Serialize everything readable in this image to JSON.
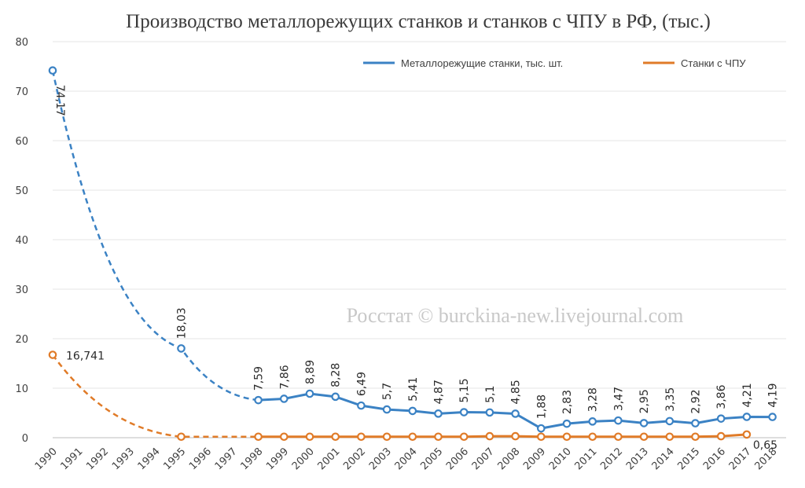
{
  "chart_data": {
    "type": "line",
    "title": "Производство металлорежущих станков и станков с ЧПУ в РФ, (тыс.)",
    "watermark": "Росстат © burckina-new.livejournal.com",
    "xlabel": "",
    "ylabel": "",
    "ylim": [
      0,
      80
    ],
    "yticks": [
      "0",
      "10",
      "20",
      "30",
      "40",
      "50",
      "60",
      "70",
      "80"
    ],
    "grid": true,
    "legend_position": "top-right",
    "categories": [
      "1990",
      "1991",
      "1992",
      "1993",
      "1994",
      "1995",
      "1996",
      "1997",
      "1998",
      "1999",
      "2000",
      "2001",
      "2002",
      "2003",
      "2004",
      "2005",
      "2006",
      "2007",
      "2008",
      "2009",
      "2010",
      "2011",
      "2012",
      "2013",
      "2014",
      "2015",
      "2016",
      "2017",
      "2018"
    ],
    "series": [
      {
        "name": "Металлорежущие станки, тыс. шт.",
        "color": "#3b82c4",
        "points": [
          {
            "x": "1990",
            "y": 74.17,
            "label": "74,17"
          },
          {
            "x": "1995",
            "y": 18.03,
            "label": "18,03"
          },
          {
            "x": "1998",
            "y": 7.59,
            "label": "7,59"
          },
          {
            "x": "1999",
            "y": 7.86,
            "label": "7,86"
          },
          {
            "x": "2000",
            "y": 8.89,
            "label": "8,89"
          },
          {
            "x": "2001",
            "y": 8.28,
            "label": "8,28"
          },
          {
            "x": "2002",
            "y": 6.49,
            "label": "6,49"
          },
          {
            "x": "2003",
            "y": 5.7,
            "label": "5,7"
          },
          {
            "x": "2004",
            "y": 5.41,
            "label": "5,41"
          },
          {
            "x": "2005",
            "y": 4.87,
            "label": "4,87"
          },
          {
            "x": "2006",
            "y": 5.15,
            "label": "5,15"
          },
          {
            "x": "2007",
            "y": 5.1,
            "label": "5,1"
          },
          {
            "x": "2008",
            "y": 4.85,
            "label": "4,85"
          },
          {
            "x": "2009",
            "y": 1.88,
            "label": "1,88"
          },
          {
            "x": "2010",
            "y": 2.83,
            "label": "2,83"
          },
          {
            "x": "2011",
            "y": 3.28,
            "label": "3,28"
          },
          {
            "x": "2012",
            "y": 3.47,
            "label": "3,47"
          },
          {
            "x": "2013",
            "y": 2.95,
            "label": "2,95"
          },
          {
            "x": "2014",
            "y": 3.35,
            "label": "3,35"
          },
          {
            "x": "2015",
            "y": 2.92,
            "label": "2,92"
          },
          {
            "x": "2016",
            "y": 3.86,
            "label": "3,86"
          },
          {
            "x": "2017",
            "y": 4.21,
            "label": "4,21"
          },
          {
            "x": "2018",
            "y": 4.19,
            "label": "4,19"
          }
        ],
        "dashed_until": "1998"
      },
      {
        "name": "Станки с ЧПУ",
        "color": "#e07b28",
        "points": [
          {
            "x": "1990",
            "y": 16.741,
            "label": "16,741"
          },
          {
            "x": "1995",
            "y": 0.2
          },
          {
            "x": "1998",
            "y": 0.2
          },
          {
            "x": "1999",
            "y": 0.2
          },
          {
            "x": "2000",
            "y": 0.2
          },
          {
            "x": "2001",
            "y": 0.2
          },
          {
            "x": "2002",
            "y": 0.2
          },
          {
            "x": "2003",
            "y": 0.2
          },
          {
            "x": "2004",
            "y": 0.2
          },
          {
            "x": "2005",
            "y": 0.2
          },
          {
            "x": "2006",
            "y": 0.2
          },
          {
            "x": "2007",
            "y": 0.3
          },
          {
            "x": "2008",
            "y": 0.3
          },
          {
            "x": "2009",
            "y": 0.2
          },
          {
            "x": "2010",
            "y": 0.2
          },
          {
            "x": "2011",
            "y": 0.2
          },
          {
            "x": "2012",
            "y": 0.2
          },
          {
            "x": "2013",
            "y": 0.2
          },
          {
            "x": "2014",
            "y": 0.2
          },
          {
            "x": "2015",
            "y": 0.2
          },
          {
            "x": "2016",
            "y": 0.3
          },
          {
            "x": "2017",
            "y": 0.65,
            "label": "0,65"
          }
        ],
        "dashed_until": "1998"
      }
    ]
  }
}
